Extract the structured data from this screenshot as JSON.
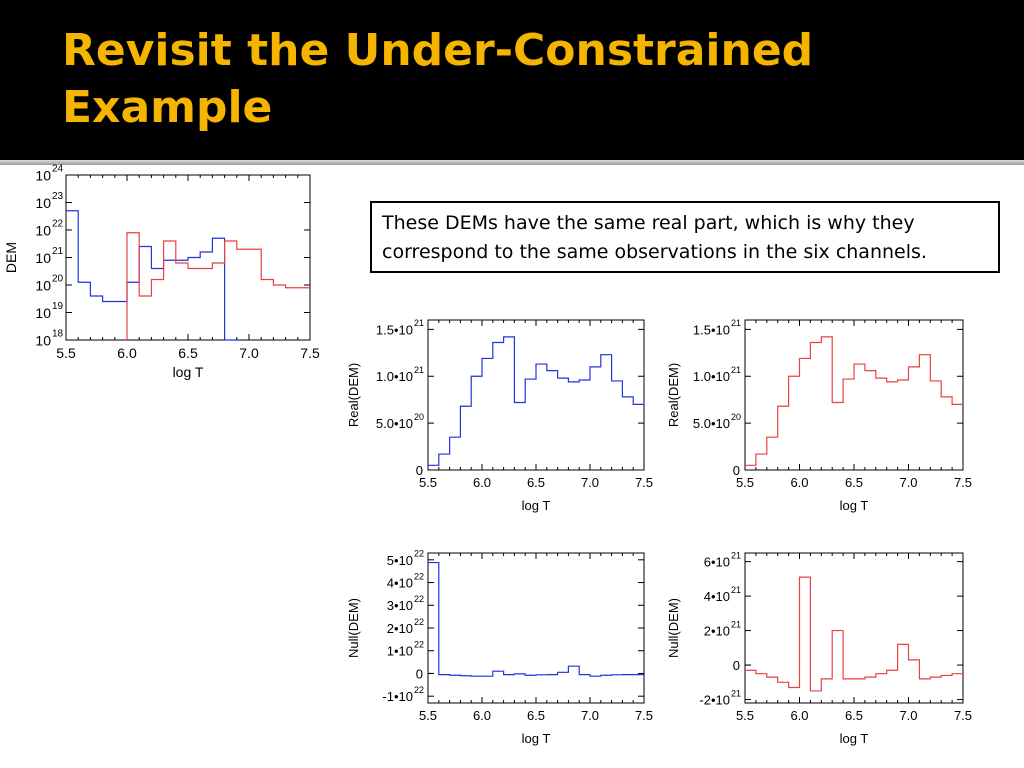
{
  "slide": {
    "title_line1": "Revisit the Under-Constrained",
    "title_line2": "Example",
    "note": "These DEMs have the same real part, which is why they correspond to the same observations in the six channels.",
    "title_color": "#f5b400"
  },
  "colors": {
    "blue": "#2233dd",
    "red": "#e8433f"
  },
  "chart_data": [
    {
      "id": "dem",
      "type": "line",
      "step": true,
      "log_y": true,
      "xlabel": "log T",
      "ylabel": "DEM",
      "xlim": [
        5.5,
        7.5
      ],
      "ylim": [
        18,
        24
      ],
      "x_ticks": [
        "5.5",
        "6.0",
        "6.5",
        "7.0",
        "7.5"
      ],
      "y_ticks": [
        {
          "value": 18,
          "base": "10",
          "exp": "18"
        },
        {
          "value": 19,
          "base": "10",
          "exp": "19"
        },
        {
          "value": 20,
          "base": "10",
          "exp": "20"
        },
        {
          "value": 21,
          "base": "10",
          "exp": "21"
        },
        {
          "value": 22,
          "base": "10",
          "exp": "22"
        },
        {
          "value": 23,
          "base": "10",
          "exp": "23"
        },
        {
          "value": 24,
          "base": "10",
          "exp": "24"
        }
      ],
      "series": [
        {
          "color": "blue",
          "x": [
            5.55,
            5.65,
            5.75,
            5.85,
            5.95,
            6.05,
            6.15,
            6.25,
            6.35,
            6.45,
            6.55,
            6.65,
            6.75,
            6.85
          ],
          "y": [
            22.7,
            20.1,
            19.6,
            19.4,
            19.4,
            20.1,
            21.4,
            20.6,
            20.9,
            20.9,
            21.0,
            21.2,
            21.7,
            18.0
          ]
        },
        {
          "color": "red",
          "x": [
            6.05,
            6.15,
            6.25,
            6.35,
            6.45,
            6.55,
            6.65,
            6.75,
            6.85,
            6.95,
            7.05,
            7.15,
            7.25,
            7.35,
            7.45
          ],
          "y": [
            21.9,
            19.6,
            20.2,
            21.6,
            20.8,
            20.6,
            20.6,
            20.8,
            21.6,
            21.3,
            21.3,
            20.2,
            20.0,
            19.9,
            19.9
          ]
        }
      ]
    },
    {
      "id": "real-blue",
      "type": "line",
      "step": true,
      "xlabel": "log T",
      "ylabel": "Real(DEM)",
      "xlim": [
        5.5,
        7.5
      ],
      "ylim": [
        0,
        1.6
      ],
      "x_ticks": [
        "5.5",
        "6.0",
        "6.5",
        "7.0",
        "7.5"
      ],
      "y_ticks": [
        {
          "value": 0,
          "base": "0"
        },
        {
          "value": 0.5,
          "base": "5.0•10",
          "exp": "20"
        },
        {
          "value": 1.0,
          "base": "1.0•10",
          "exp": "21"
        },
        {
          "value": 1.5,
          "base": "1.5•10",
          "exp": "21"
        }
      ],
      "series": [
        {
          "color": "blue",
          "x": [
            5.55,
            5.65,
            5.75,
            5.85,
            5.95,
            6.05,
            6.15,
            6.25,
            6.35,
            6.45,
            6.55,
            6.65,
            6.75,
            6.85,
            6.95,
            7.05,
            7.15,
            7.25,
            7.35,
            7.45
          ],
          "y": [
            0.05,
            0.17,
            0.35,
            0.68,
            1.0,
            1.19,
            1.36,
            1.42,
            0.72,
            0.97,
            1.13,
            1.06,
            0.98,
            0.94,
            0.96,
            1.1,
            1.23,
            0.95,
            0.78,
            0.7
          ]
        }
      ]
    },
    {
      "id": "real-red",
      "type": "line",
      "step": true,
      "xlabel": "log T",
      "ylabel": "Real(DEM)",
      "xlim": [
        5.5,
        7.5
      ],
      "ylim": [
        0,
        1.6
      ],
      "x_ticks": [
        "5.5",
        "6.0",
        "6.5",
        "7.0",
        "7.5"
      ],
      "y_ticks": [
        {
          "value": 0,
          "base": "0"
        },
        {
          "value": 0.5,
          "base": "5.0•10",
          "exp": "20"
        },
        {
          "value": 1.0,
          "base": "1.0•10",
          "exp": "21"
        },
        {
          "value": 1.5,
          "base": "1.5•10",
          "exp": "21"
        }
      ],
      "series": [
        {
          "color": "red",
          "x": [
            5.55,
            5.65,
            5.75,
            5.85,
            5.95,
            6.05,
            6.15,
            6.25,
            6.35,
            6.45,
            6.55,
            6.65,
            6.75,
            6.85,
            6.95,
            7.05,
            7.15,
            7.25,
            7.35,
            7.45
          ],
          "y": [
            0.05,
            0.17,
            0.35,
            0.68,
            1.0,
            1.19,
            1.36,
            1.42,
            0.72,
            0.97,
            1.13,
            1.06,
            0.98,
            0.94,
            0.96,
            1.1,
            1.23,
            0.95,
            0.78,
            0.7
          ]
        }
      ]
    },
    {
      "id": "null-blue",
      "type": "line",
      "step": true,
      "xlabel": "log T",
      "ylabel": "Null(DEM)",
      "xlim": [
        5.5,
        7.5
      ],
      "ylim": [
        -1.3,
        5.3
      ],
      "x_ticks": [
        "5.5",
        "6.0",
        "6.5",
        "7.0",
        "7.5"
      ],
      "y_ticks": [
        {
          "value": -1,
          "base": "-1•10",
          "exp": "22"
        },
        {
          "value": 0,
          "base": "0"
        },
        {
          "value": 1,
          "base": "1•10",
          "exp": "22"
        },
        {
          "value": 2,
          "base": "2•10",
          "exp": "22"
        },
        {
          "value": 3,
          "base": "3•10",
          "exp": "22"
        },
        {
          "value": 4,
          "base": "4•10",
          "exp": "22"
        },
        {
          "value": 5,
          "base": "5•10",
          "exp": "22"
        }
      ],
      "series": [
        {
          "color": "blue",
          "x": [
            5.55,
            5.65,
            5.75,
            5.85,
            5.95,
            6.05,
            6.15,
            6.25,
            6.35,
            6.45,
            6.55,
            6.65,
            6.75,
            6.85,
            6.95,
            7.05,
            7.15,
            7.25,
            7.35,
            7.45
          ],
          "y": [
            4.88,
            -0.05,
            -0.08,
            -0.1,
            -0.12,
            -0.12,
            0.1,
            -0.05,
            -0.02,
            -0.08,
            -0.06,
            -0.05,
            0.05,
            0.32,
            -0.05,
            -0.12,
            -0.08,
            -0.06,
            -0.05,
            -0.05
          ]
        }
      ]
    },
    {
      "id": "null-red",
      "type": "line",
      "step": true,
      "xlabel": "log T",
      "ylabel": "Null(DEM)",
      "xlim": [
        5.5,
        7.5
      ],
      "ylim": [
        -2.2,
        6.5
      ],
      "x_ticks": [
        "5.5",
        "6.0",
        "6.5",
        "7.0",
        "7.5"
      ],
      "y_ticks": [
        {
          "value": -2,
          "base": "-2•10",
          "exp": "21"
        },
        {
          "value": 0,
          "base": "0"
        },
        {
          "value": 2,
          "base": "2•10",
          "exp": "21"
        },
        {
          "value": 4,
          "base": "4•10",
          "exp": "21"
        },
        {
          "value": 6,
          "base": "6•10",
          "exp": "21"
        }
      ],
      "series": [
        {
          "color": "red",
          "x": [
            5.55,
            5.65,
            5.75,
            5.85,
            5.95,
            6.05,
            6.15,
            6.25,
            6.35,
            6.45,
            6.55,
            6.65,
            6.75,
            6.85,
            6.95,
            7.05,
            7.15,
            7.25,
            7.35,
            7.45
          ],
          "y": [
            -0.3,
            -0.5,
            -0.7,
            -1.0,
            -1.3,
            5.1,
            -1.5,
            -0.8,
            2.0,
            -0.8,
            -0.8,
            -0.7,
            -0.5,
            -0.3,
            1.2,
            0.3,
            -0.8,
            -0.7,
            -0.6,
            -0.5
          ]
        }
      ]
    }
  ]
}
